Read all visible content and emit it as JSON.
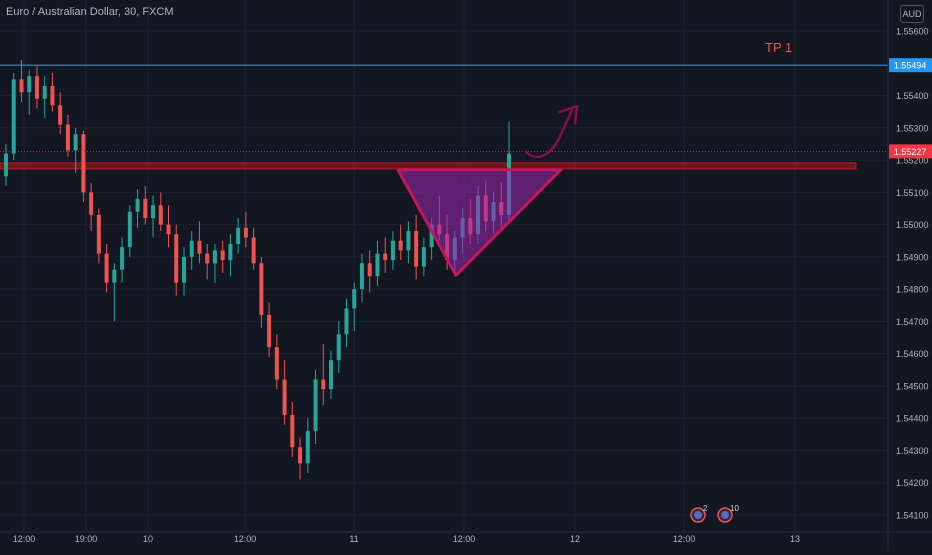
{
  "header": {
    "symbol_title": "Euro / Australian Dollar, 30, FXCM",
    "currency": "AUD"
  },
  "annotations": {
    "tp_label": "TP 1",
    "event_badges": [
      "2",
      "10"
    ]
  },
  "colors": {
    "background": "#131722",
    "up_candle": "#26a69a",
    "down_candle": "#ef5350",
    "tp_line": "#2196f3",
    "resistance_zone": "#b71c1c",
    "triangle_fill": "#9c27b0",
    "triangle_stroke": "#c2185b",
    "arrow": "#880e4f",
    "current_price_tag": "#f23645"
  },
  "chart_data": {
    "type": "candlestick",
    "title": "Euro / Australian Dollar, 30, FXCM",
    "y_ticks": [
      "1.55600",
      "1.55400",
      "1.55300",
      "1.55200",
      "1.55100",
      "1.55000",
      "1.54900",
      "1.54800",
      "1.54700",
      "1.54600",
      "1.54500",
      "1.54400",
      "1.54300",
      "1.54200",
      "1.54100"
    ],
    "x_ticks": [
      "12:00",
      "19:00",
      "10",
      "12:00",
      "11",
      "12:00",
      "12",
      "12:00",
      "13"
    ],
    "ylim": [
      1.5405,
      1.5565
    ],
    "price_labels": {
      "tp_price": "1.55494",
      "current_price": "1.55227"
    },
    "tp_level": 1.55494,
    "current_level": 1.55227,
    "resistance_zone": [
      1.55165,
      1.55185
    ],
    "triangle": {
      "top_left": 1.5517,
      "top_right": 1.5517,
      "bottom": 1.54843
    },
    "candles": [
      [
        1.5515,
        1.5525,
        1.5512,
        1.5522
      ],
      [
        1.5522,
        1.5547,
        1.552,
        1.5545
      ],
      [
        1.5545,
        1.5551,
        1.5538,
        1.5541
      ],
      [
        1.5541,
        1.5548,
        1.5534,
        1.5546
      ],
      [
        1.5546,
        1.5549,
        1.5536,
        1.5539
      ],
      [
        1.5539,
        1.5546,
        1.5533,
        1.5543
      ],
      [
        1.5543,
        1.5547,
        1.5535,
        1.5537
      ],
      [
        1.5537,
        1.5541,
        1.5528,
        1.5531
      ],
      [
        1.5531,
        1.5534,
        1.5521,
        1.5523
      ],
      [
        1.5523,
        1.553,
        1.5516,
        1.5528
      ],
      [
        1.5528,
        1.5529,
        1.5507,
        1.551
      ],
      [
        1.551,
        1.5513,
        1.5498,
        1.5503
      ],
      [
        1.5503,
        1.5505,
        1.5488,
        1.5491
      ],
      [
        1.5491,
        1.5494,
        1.5479,
        1.5482
      ],
      [
        1.5482,
        1.5488,
        1.547,
        1.5486
      ],
      [
        1.5486,
        1.5496,
        1.5482,
        1.5493
      ],
      [
        1.5493,
        1.5506,
        1.549,
        1.5504
      ],
      [
        1.5504,
        1.5511,
        1.5499,
        1.5508
      ],
      [
        1.5508,
        1.5512,
        1.55,
        1.5502
      ],
      [
        1.5502,
        1.5509,
        1.5496,
        1.5506
      ],
      [
        1.5506,
        1.551,
        1.5498,
        1.55
      ],
      [
        1.55,
        1.5506,
        1.5493,
        1.5497
      ],
      [
        1.5497,
        1.55,
        1.5478,
        1.5482
      ],
      [
        1.5482,
        1.5493,
        1.5478,
        1.549
      ],
      [
        1.549,
        1.5498,
        1.5486,
        1.5495
      ],
      [
        1.5495,
        1.5501,
        1.5488,
        1.5491
      ],
      [
        1.5491,
        1.5494,
        1.5483,
        1.5488
      ],
      [
        1.5488,
        1.5494,
        1.5482,
        1.5492
      ],
      [
        1.5492,
        1.5495,
        1.5485,
        1.5489
      ],
      [
        1.5489,
        1.5497,
        1.5484,
        1.5494
      ],
      [
        1.5494,
        1.5502,
        1.5491,
        1.5499
      ],
      [
        1.5499,
        1.5504,
        1.5493,
        1.5496
      ],
      [
        1.5496,
        1.5499,
        1.5486,
        1.5488
      ],
      [
        1.5488,
        1.549,
        1.5468,
        1.5472
      ],
      [
        1.5472,
        1.5476,
        1.5459,
        1.5462
      ],
      [
        1.5462,
        1.5466,
        1.5449,
        1.5452
      ],
      [
        1.5452,
        1.5458,
        1.5438,
        1.5441
      ],
      [
        1.5441,
        1.5445,
        1.5428,
        1.5431
      ],
      [
        1.5431,
        1.5434,
        1.5421,
        1.5426
      ],
      [
        1.5426,
        1.544,
        1.5423,
        1.5436
      ],
      [
        1.5436,
        1.5455,
        1.5432,
        1.5452
      ],
      [
        1.5452,
        1.5463,
        1.5444,
        1.5449
      ],
      [
        1.5449,
        1.5461,
        1.5446,
        1.5458
      ],
      [
        1.5458,
        1.547,
        1.5454,
        1.5466
      ],
      [
        1.5466,
        1.5477,
        1.5462,
        1.5474
      ],
      [
        1.5474,
        1.5482,
        1.5467,
        1.548
      ],
      [
        1.548,
        1.5491,
        1.5476,
        1.5488
      ],
      [
        1.5488,
        1.5492,
        1.5479,
        1.5484
      ],
      [
        1.5484,
        1.5495,
        1.5481,
        1.5491
      ],
      [
        1.5491,
        1.5496,
        1.5485,
        1.5489
      ],
      [
        1.5489,
        1.5498,
        1.5486,
        1.5495
      ],
      [
        1.5495,
        1.55,
        1.5489,
        1.5492
      ],
      [
        1.5492,
        1.5501,
        1.5488,
        1.5498
      ],
      [
        1.5498,
        1.5503,
        1.5483,
        1.5487
      ],
      [
        1.5487,
        1.5496,
        1.5484,
        1.5493
      ],
      [
        1.5493,
        1.5502,
        1.5489,
        1.55
      ],
      [
        1.55,
        1.5509,
        1.5495,
        1.5497
      ],
      [
        1.5497,
        1.5503,
        1.5486,
        1.5489
      ],
      [
        1.5489,
        1.5498,
        1.5484,
        1.5496
      ],
      [
        1.5496,
        1.5505,
        1.5491,
        1.5502
      ],
      [
        1.5502,
        1.5508,
        1.5494,
        1.5497
      ],
      [
        1.5497,
        1.5512,
        1.5494,
        1.5509
      ],
      [
        1.5509,
        1.5514,
        1.5498,
        1.5501
      ],
      [
        1.5501,
        1.551,
        1.5497,
        1.5507
      ],
      [
        1.5507,
        1.5513,
        1.5499,
        1.5503
      ],
      [
        1.5503,
        1.5532,
        1.5501,
        1.5522
      ]
    ]
  }
}
